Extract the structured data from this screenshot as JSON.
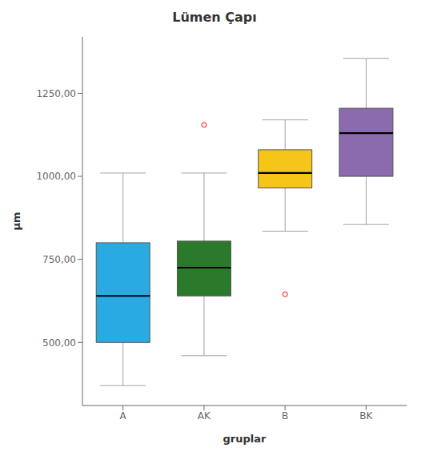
{
  "chart_data": {
    "type": "box",
    "title": "Lümen Çapı",
    "x_label": "gruplar",
    "y_label": "μm",
    "categories": [
      "A",
      "AK",
      "B",
      "BK"
    ],
    "colors": [
      "#29ABE2",
      "#2B7A2B",
      "#F5C518",
      "#8B6AAE"
    ],
    "boxes": [
      {
        "whislo": 370,
        "q1": 500,
        "med": 640,
        "q3": 800,
        "whishi": 1010,
        "fliers": []
      },
      {
        "whislo": 460,
        "q1": 640,
        "med": 725,
        "q3": 805,
        "whishi": 1010,
        "fliers": [
          1155
        ]
      },
      {
        "whislo": 835,
        "q1": 965,
        "med": 1010,
        "q3": 1080,
        "whishi": 1170,
        "fliers": [
          645
        ]
      },
      {
        "whislo": 855,
        "q1": 1000,
        "med": 1130,
        "q3": 1205,
        "whishi": 1355,
        "fliers": []
      }
    ],
    "ylim": [
      310,
      1420
    ],
    "yticks": [
      {
        "value": 500.0,
        "label": "500,00"
      },
      {
        "value": 750.0,
        "label": "750,00"
      },
      {
        "value": 1000.0,
        "label": "1000,00"
      },
      {
        "value": 1250.0,
        "label": "1250,00"
      }
    ],
    "grid": false
  }
}
